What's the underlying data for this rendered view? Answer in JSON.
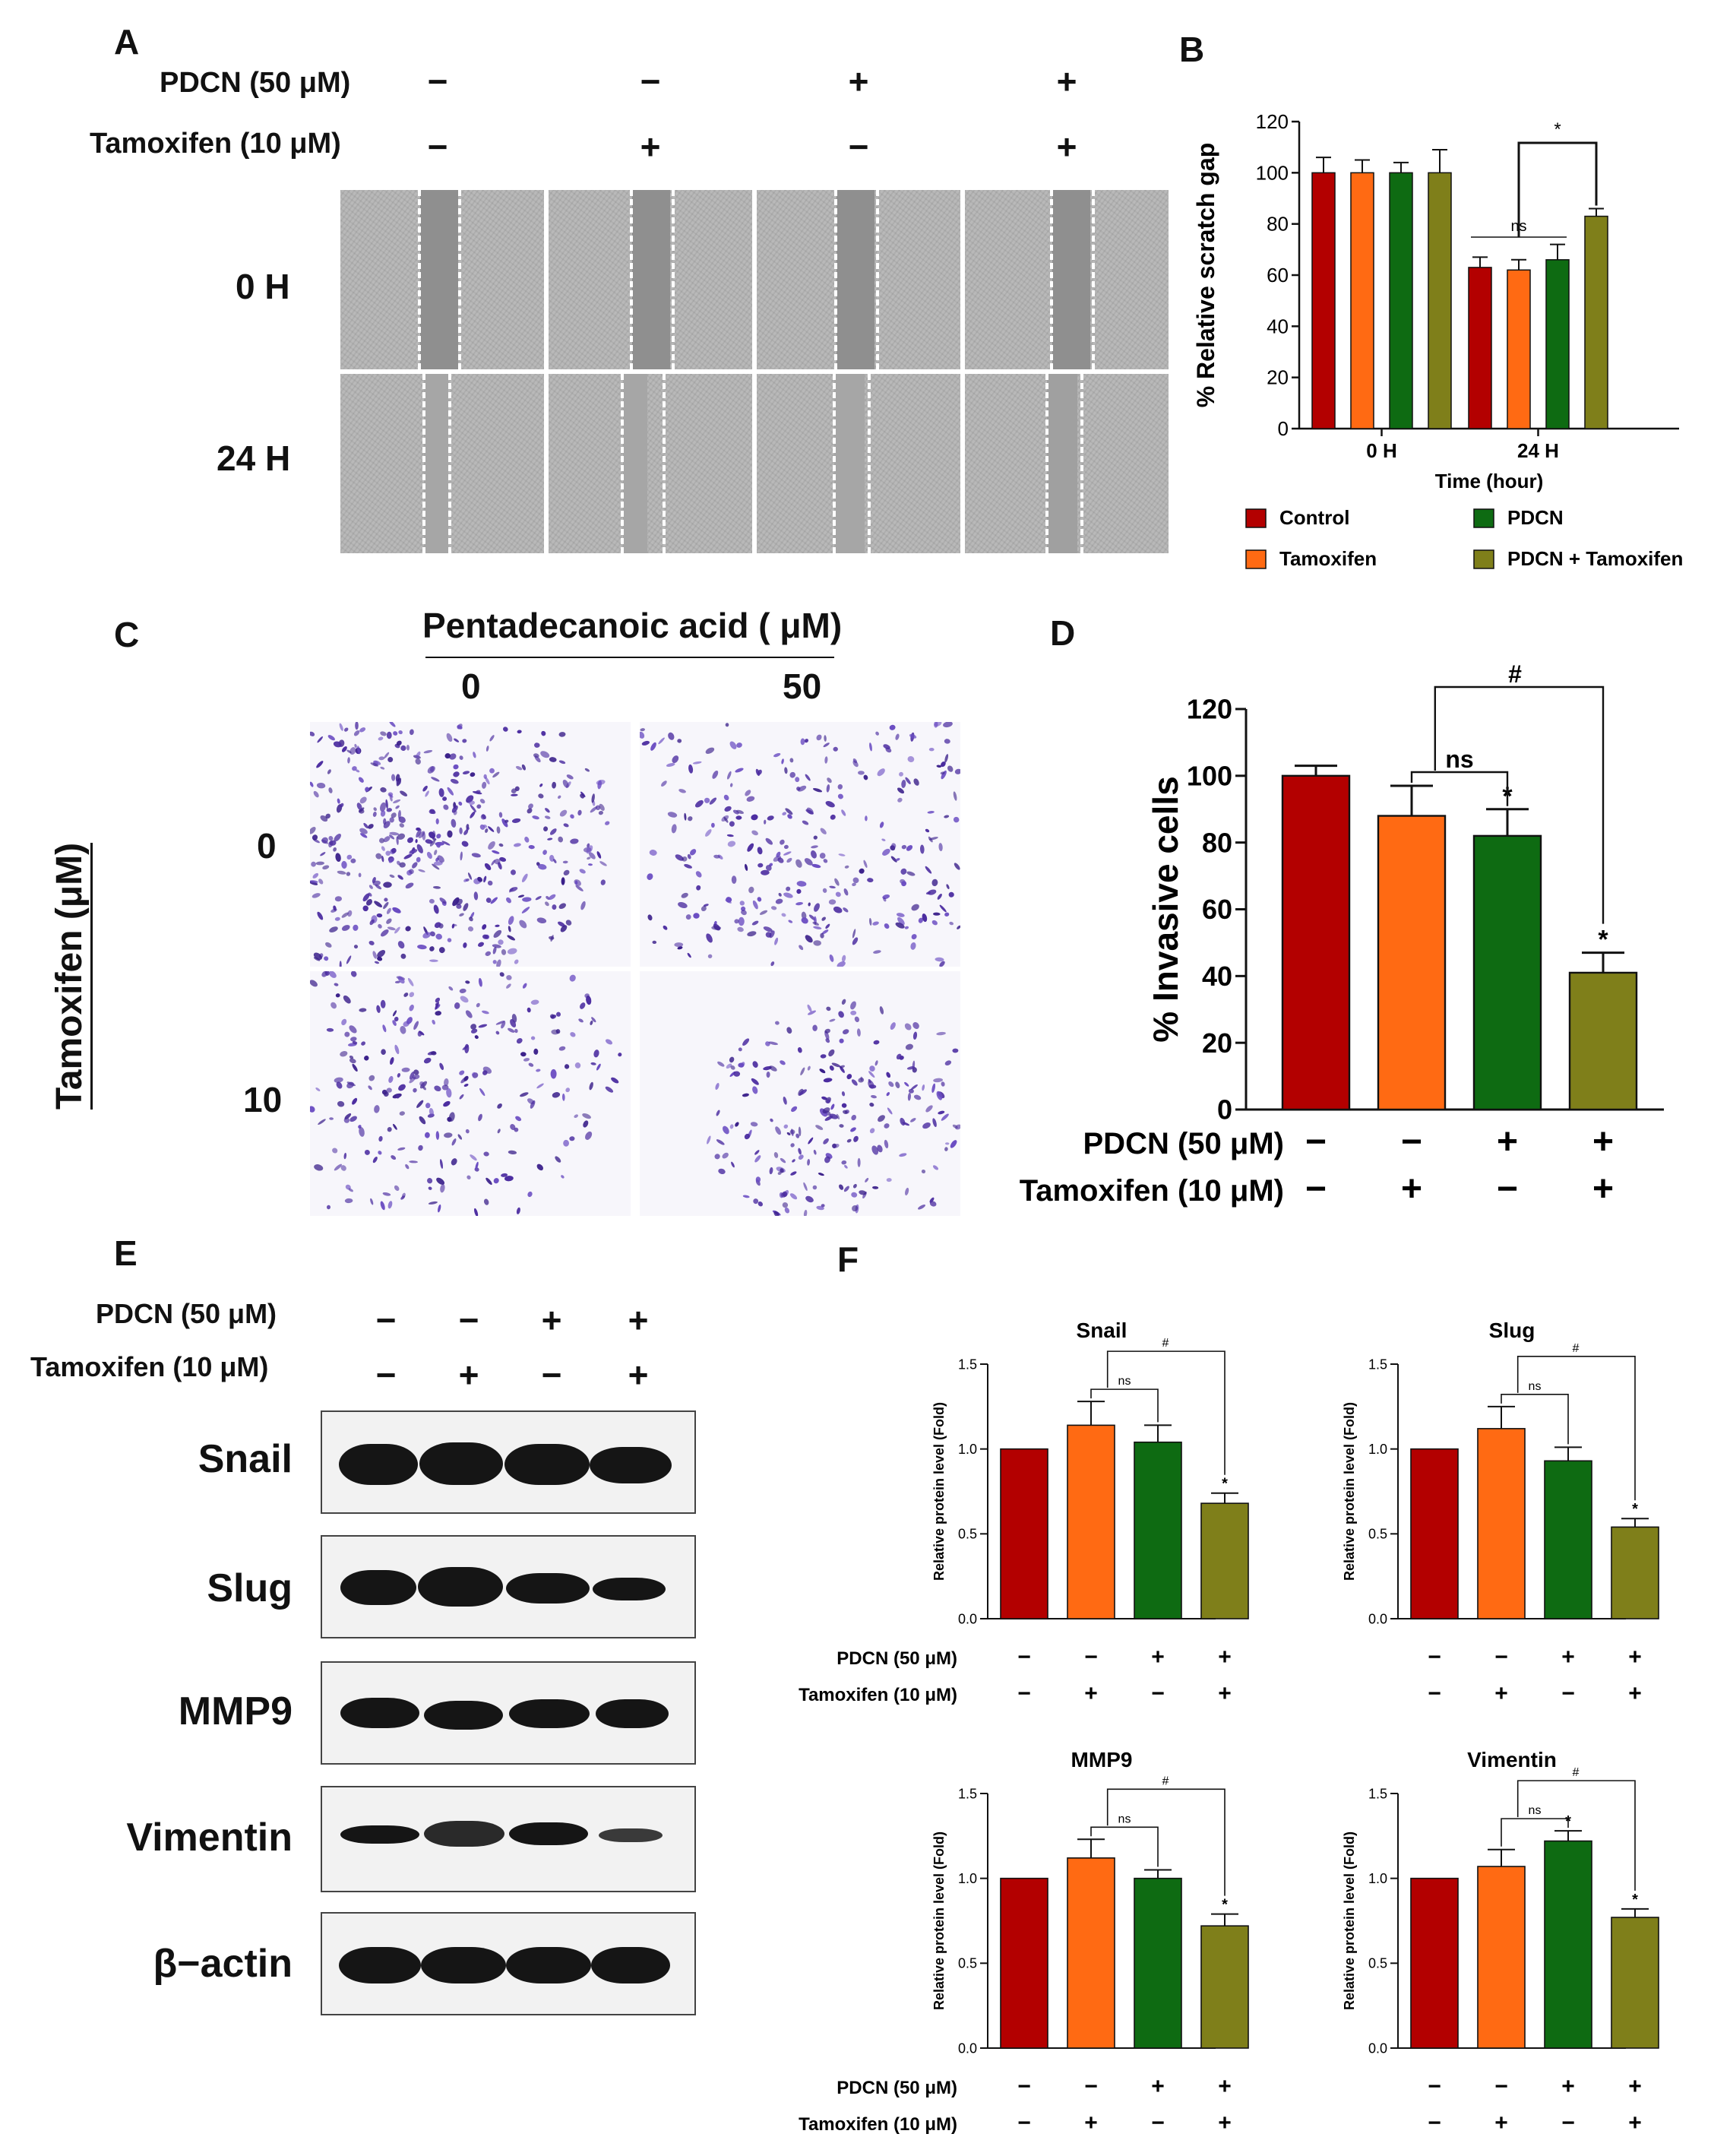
{
  "panels": {
    "A": "A",
    "B": "B",
    "C": "C",
    "D": "D",
    "E": "E",
    "F": "F"
  },
  "colors": {
    "control": "#b30000",
    "tamoxifen": "#ff6a13",
    "pdcn": "#0e6b12",
    "combo": "#7f7f1a",
    "stain": "#5a3aa8"
  },
  "panel_a": {
    "row_labels": [
      "PDCN (50 μM)",
      "Tamoxifen (10 μM)"
    ],
    "pdcn_signs": [
      "−",
      "−",
      "+",
      "+"
    ],
    "tamoxifen_signs": [
      "−",
      "+",
      "−",
      "+"
    ],
    "time_labels": [
      "0 H",
      "24 H"
    ]
  },
  "panel_c": {
    "title": "Pentadecanoic acid ( μM)",
    "col_labels": [
      "0",
      "50"
    ],
    "row_axis_label": "Tamoxifen (μM)",
    "row_labels": [
      "0",
      "10"
    ]
  },
  "panel_e": {
    "row_labels": [
      "PDCN (50 μM)",
      "Tamoxifen (10 μM)"
    ],
    "pdcn_signs": [
      "−",
      "−",
      "+",
      "+"
    ],
    "tamoxifen_signs": [
      "−",
      "+",
      "−",
      "+"
    ],
    "proteins": [
      "Snail",
      "Slug",
      "MMP9",
      "Vimentin",
      "β−actin"
    ]
  },
  "chart_data": [
    {
      "id": "B",
      "type": "bar",
      "xlabel": "Time (hour)",
      "ylabel": "% Relative scratch gap",
      "categories": [
        "0 H",
        "24 H"
      ],
      "ylim": [
        0,
        120
      ],
      "yticks": [
        "0",
        "20",
        "40",
        "60",
        "80",
        "100",
        "120"
      ],
      "series": [
        {
          "name": "Control",
          "color": "#b30000",
          "values": [
            100,
            63
          ],
          "errors": [
            6,
            4
          ]
        },
        {
          "name": "Tamoxifen",
          "color": "#ff6a13",
          "values": [
            100,
            62
          ],
          "errors": [
            5,
            4
          ]
        },
        {
          "name": "PDCN",
          "color": "#0e6b12",
          "values": [
            100,
            66
          ],
          "errors": [
            4,
            6
          ]
        },
        {
          "name": "PDCN + Tamoxifen",
          "color": "#7f7f1a",
          "values": [
            100,
            83
          ],
          "errors": [
            9,
            3
          ]
        }
      ],
      "annotations": [
        "ns",
        "*"
      ],
      "legend": "bottom"
    },
    {
      "id": "D",
      "type": "bar",
      "ylabel": "% Invasive cells",
      "ylim": [
        0,
        120
      ],
      "yticks": [
        "0",
        "20",
        "40",
        "60",
        "80",
        "100",
        "120"
      ],
      "values": [
        100,
        88,
        82,
        41
      ],
      "errors": [
        3,
        9,
        8,
        6
      ],
      "stars": [
        "",
        "",
        "*",
        "*"
      ],
      "annotations": [
        "ns",
        "#"
      ],
      "row_labels": [
        "PDCN (50 μM)",
        "Tamoxifen (10 μM)"
      ],
      "pdcn_signs": [
        "−",
        "−",
        "+",
        "+"
      ],
      "tamoxifen_signs": [
        "−",
        "+",
        "−",
        "+"
      ]
    },
    {
      "id": "F-Snail",
      "type": "bar",
      "title": "Snail",
      "ylabel": "Relative protein level (Fold)",
      "ylim": [
        0,
        1.5
      ],
      "yticks": [
        "0.0",
        "0.5",
        "1.0",
        "1.5"
      ],
      "values": [
        1.0,
        1.14,
        1.04,
        0.68
      ],
      "errors": [
        0,
        0.14,
        0.1,
        0.06
      ],
      "stars": [
        "",
        "",
        "",
        "*"
      ],
      "annotations": [
        "ns",
        "#"
      ],
      "row_labels": [
        "PDCN (50 μM)",
        "Tamoxifen (10 μM)"
      ],
      "pdcn_signs": [
        "−",
        "−",
        "+",
        "+"
      ],
      "tamoxifen_signs": [
        "−",
        "+",
        "−",
        "+"
      ]
    },
    {
      "id": "F-Slug",
      "type": "bar",
      "title": "Slug",
      "ylabel": "Relative protein level (Fold)",
      "ylim": [
        0,
        1.5
      ],
      "yticks": [
        "0.0",
        "0.5",
        "1.0",
        "1.5"
      ],
      "values": [
        1.0,
        1.12,
        0.93,
        0.54
      ],
      "errors": [
        0,
        0.13,
        0.08,
        0.05
      ],
      "stars": [
        "",
        "",
        "",
        "*"
      ],
      "annotations": [
        "ns",
        "#"
      ],
      "pdcn_signs": [
        "−",
        "−",
        "+",
        "+"
      ],
      "tamoxifen_signs": [
        "−",
        "+",
        "−",
        "+"
      ]
    },
    {
      "id": "F-MMP9",
      "type": "bar",
      "title": "MMP9",
      "ylabel": "Relative protein level (Fold)",
      "ylim": [
        0,
        1.5
      ],
      "yticks": [
        "0.0",
        "0.5",
        "1.0",
        "1.5"
      ],
      "values": [
        1.0,
        1.12,
        1.0,
        0.72
      ],
      "errors": [
        0,
        0.11,
        0.05,
        0.07
      ],
      "stars": [
        "",
        "",
        "",
        "*"
      ],
      "annotations": [
        "ns",
        "#"
      ],
      "row_labels": [
        "PDCN (50 μM)",
        "Tamoxifen (10 μM)"
      ],
      "pdcn_signs": [
        "−",
        "−",
        "+",
        "+"
      ],
      "tamoxifen_signs": [
        "−",
        "+",
        "−",
        "+"
      ]
    },
    {
      "id": "F-Vimentin",
      "type": "bar",
      "title": "Vimentin",
      "ylabel": "Relative protein level (Fold)",
      "ylim": [
        0,
        1.5
      ],
      "yticks": [
        "0.0",
        "0.5",
        "1.0",
        "1.5"
      ],
      "values": [
        1.0,
        1.07,
        1.22,
        0.77
      ],
      "errors": [
        0,
        0.1,
        0.06,
        0.05
      ],
      "stars": [
        "",
        "",
        "*",
        "*"
      ],
      "annotations": [
        "ns",
        "#"
      ],
      "pdcn_signs": [
        "−",
        "−",
        "+",
        "+"
      ],
      "tamoxifen_signs": [
        "−",
        "+",
        "−",
        "+"
      ]
    }
  ]
}
